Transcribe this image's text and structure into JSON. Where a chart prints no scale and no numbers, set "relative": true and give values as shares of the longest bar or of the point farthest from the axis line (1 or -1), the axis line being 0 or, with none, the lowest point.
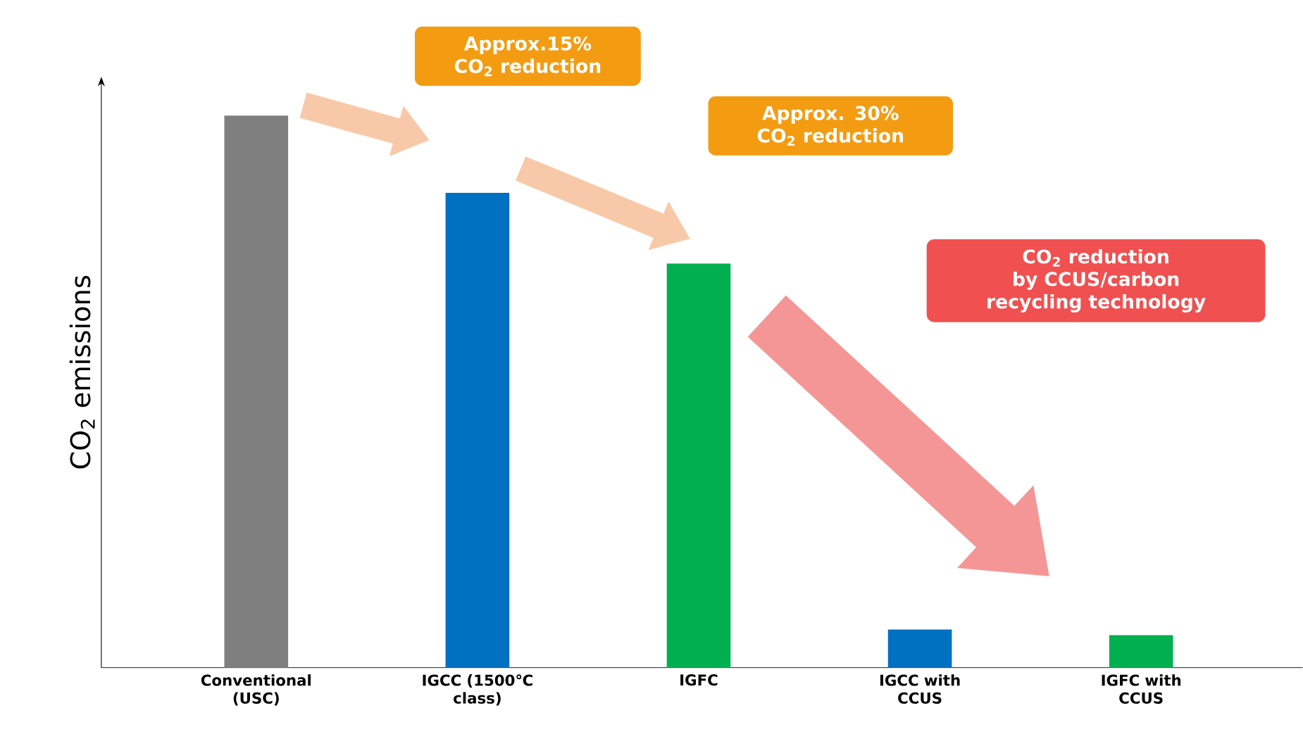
{
  "chart_data": {
    "type": "bar",
    "relative": true,
    "ylabel": "CO$_{2}$ emissions",
    "categories": [
      "Conventional (USC)",
      "IGCC (1500℃ class)",
      "IGFC",
      "IGCC with CCUS",
      "IGFC with CCUS"
    ],
    "values": [
      1,
      0.86,
      0.732,
      0.069,
      0.059
    ],
    "colors": [
      "#7f7f7f",
      "#0070c0",
      "#00b050",
      "#0070c0",
      "#00b050"
    ],
    "annotations": [
      "Approx.15% CO$_{2}$ reduction",
      "Approx. 30% CO$_{2}$ reduction",
      "CO$_{2}$ reduction by CCUS/carbon recycling technology"
    ]
  }
}
